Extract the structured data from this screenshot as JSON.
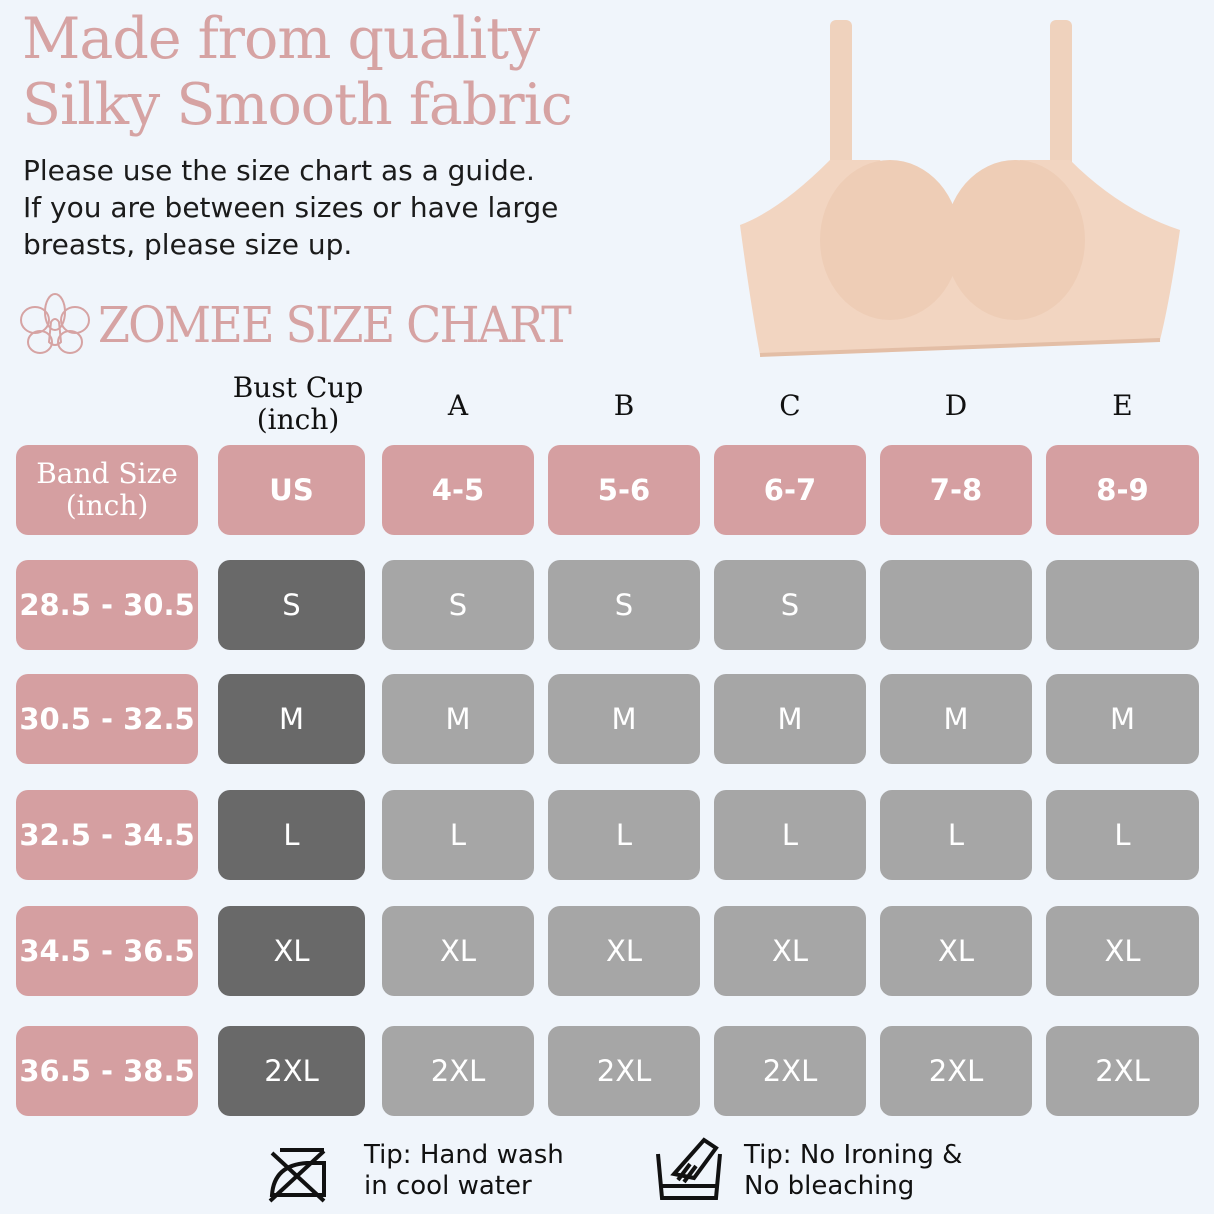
{
  "headline": {
    "line1": "Made from quality",
    "line2": "Silky Smooth fabric"
  },
  "subtitle": {
    "line1": "Please use the size chart as a guide.",
    "line2": "If you are between sizes or have large",
    "line3": "breasts, please size up."
  },
  "brand_title": "ZOMEE SIZE CHART",
  "colors": {
    "pink": "#d59fa1",
    "us_column": "#696969",
    "size_cell": "#a6a6a6",
    "background": "#f0f5fb"
  },
  "table": {
    "corner_label_line1": "Bust Cup",
    "corner_label_line2": "(inch)",
    "band_header_line1": "Band Size",
    "band_header_line2": "(inch)",
    "cups": [
      "A",
      "B",
      "C",
      "D",
      "E"
    ],
    "header_row": [
      "US",
      "4-5",
      "5-6",
      "6-7",
      "7-8",
      "8-9"
    ],
    "rows": [
      {
        "band": "28.5 - 30.5",
        "cells": [
          "S",
          "S",
          "S",
          "S",
          "",
          ""
        ]
      },
      {
        "band": "30.5 - 32.5",
        "cells": [
          "M",
          "M",
          "M",
          "M",
          "M",
          "M"
        ]
      },
      {
        "band": "32.5 - 34.5",
        "cells": [
          "L",
          "L",
          "L",
          "L",
          "L",
          "L"
        ]
      },
      {
        "band": "34.5 - 36.5",
        "cells": [
          "XL",
          "XL",
          "XL",
          "XL",
          "XL",
          "XL"
        ]
      },
      {
        "band": "36.5 - 38.5",
        "cells": [
          "2XL",
          "2XL",
          "2XL",
          "2XL",
          "2XL",
          "2XL"
        ]
      }
    ]
  },
  "tips": [
    {
      "icon": "no-iron-icon",
      "line1": "Tip: Hand wash",
      "line2": "in cool water"
    },
    {
      "icon": "hand-wash-icon",
      "line1": "Tip: No Ironing &",
      "line2": "No bleaching"
    }
  ]
}
